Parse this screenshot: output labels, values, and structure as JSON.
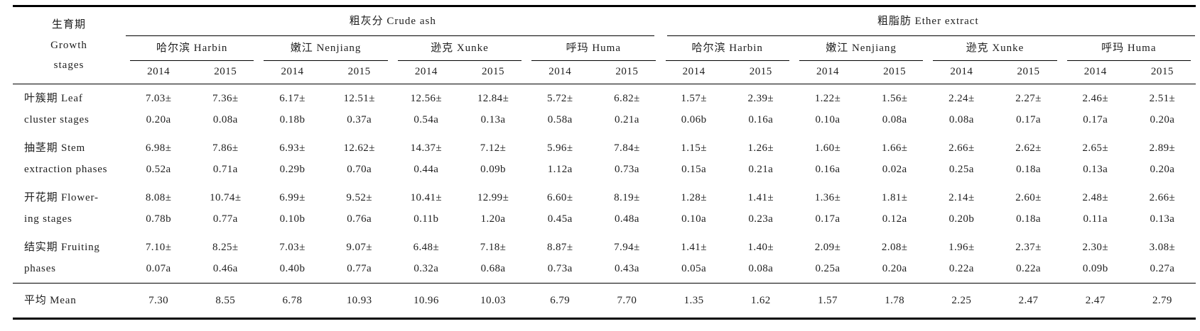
{
  "table": {
    "stub_header": [
      "生育期",
      "Growth",
      "stages"
    ],
    "groups": [
      {
        "label": "粗灰分 Crude ash"
      },
      {
        "label": "粗脂肪 Ether extract"
      }
    ],
    "locations": [
      "哈尔滨 Harbin",
      "嫩江 Nenjiang",
      "逊克 Xunke",
      "呼玛 Huma"
    ],
    "years": [
      "2014",
      "2015"
    ],
    "rows": [
      {
        "stage_lines": [
          "叶簇期 Leaf",
          "cluster stages"
        ],
        "cells": [
          [
            "7.03±",
            "0.20a"
          ],
          [
            "7.36±",
            "0.08a"
          ],
          [
            "6.17±",
            "0.18b"
          ],
          [
            "12.51±",
            "0.37a"
          ],
          [
            "12.56±",
            "0.54a"
          ],
          [
            "12.84±",
            "0.13a"
          ],
          [
            "5.72±",
            "0.58a"
          ],
          [
            "6.82±",
            "0.21a"
          ],
          [
            "1.57±",
            "0.06b"
          ],
          [
            "2.39±",
            "0.16a"
          ],
          [
            "1.22±",
            "0.10a"
          ],
          [
            "1.56±",
            "0.08a"
          ],
          [
            "2.24±",
            "0.08a"
          ],
          [
            "2.27±",
            "0.17a"
          ],
          [
            "2.46±",
            "0.17a"
          ],
          [
            "2.51±",
            "0.20a"
          ]
        ]
      },
      {
        "stage_lines": [
          "抽茎期 Stem",
          "extraction phases"
        ],
        "cells": [
          [
            "6.98±",
            "0.52a"
          ],
          [
            "7.86±",
            "0.71a"
          ],
          [
            "6.93±",
            "0.29b"
          ],
          [
            "12.62±",
            "0.70a"
          ],
          [
            "14.37±",
            "0.44a"
          ],
          [
            "7.12±",
            "0.09b"
          ],
          [
            "5.96±",
            "1.12a"
          ],
          [
            "7.84±",
            "0.73a"
          ],
          [
            "1.15±",
            "0.15a"
          ],
          [
            "1.26±",
            "0.21a"
          ],
          [
            "1.60±",
            "0.16a"
          ],
          [
            "1.66±",
            "0.02a"
          ],
          [
            "2.66±",
            "0.25a"
          ],
          [
            "2.62±",
            "0.18a"
          ],
          [
            "2.65±",
            "0.13a"
          ],
          [
            "2.89±",
            "0.20a"
          ]
        ]
      },
      {
        "stage_lines": [
          "开花期 Flower-",
          "ing stages"
        ],
        "cells": [
          [
            "8.08±",
            "0.78b"
          ],
          [
            "10.74±",
            "0.77a"
          ],
          [
            "6.99±",
            "0.10b"
          ],
          [
            "9.52±",
            "0.76a"
          ],
          [
            "10.41±",
            "0.11b"
          ],
          [
            "12.99±",
            "1.20a"
          ],
          [
            "6.60±",
            "0.45a"
          ],
          [
            "8.19±",
            "0.48a"
          ],
          [
            "1.28±",
            "0.10a"
          ],
          [
            "1.41±",
            "0.23a"
          ],
          [
            "1.36±",
            "0.17a"
          ],
          [
            "1.81±",
            "0.12a"
          ],
          [
            "2.14±",
            "0.20b"
          ],
          [
            "2.60±",
            "0.18a"
          ],
          [
            "2.48±",
            "0.11a"
          ],
          [
            "2.66±",
            "0.13a"
          ]
        ]
      },
      {
        "stage_lines": [
          "结实期 Fruiting",
          "phases"
        ],
        "cells": [
          [
            "7.10±",
            "0.07a"
          ],
          [
            "8.25±",
            "0.46a"
          ],
          [
            "7.03±",
            "0.40b"
          ],
          [
            "9.07±",
            "0.77a"
          ],
          [
            "6.48±",
            "0.32a"
          ],
          [
            "7.18±",
            "0.68a"
          ],
          [
            "8.87±",
            "0.73a"
          ],
          [
            "7.94±",
            "0.43a"
          ],
          [
            "1.41±",
            "0.05a"
          ],
          [
            "1.40±",
            "0.08a"
          ],
          [
            "2.09±",
            "0.25a"
          ],
          [
            "2.08±",
            "0.20a"
          ],
          [
            "1.96±",
            "0.22a"
          ],
          [
            "2.37±",
            "0.22a"
          ],
          [
            "2.30±",
            "0.09b"
          ],
          [
            "3.08±",
            "0.27a"
          ]
        ]
      }
    ],
    "mean_row": {
      "label": "平均 Mean",
      "values": [
        "7.30",
        "8.55",
        "6.78",
        "10.93",
        "10.96",
        "10.03",
        "6.79",
        "7.70",
        "1.35",
        "1.62",
        "1.57",
        "1.78",
        "2.25",
        "2.47",
        "2.47",
        "2.79"
      ]
    }
  }
}
